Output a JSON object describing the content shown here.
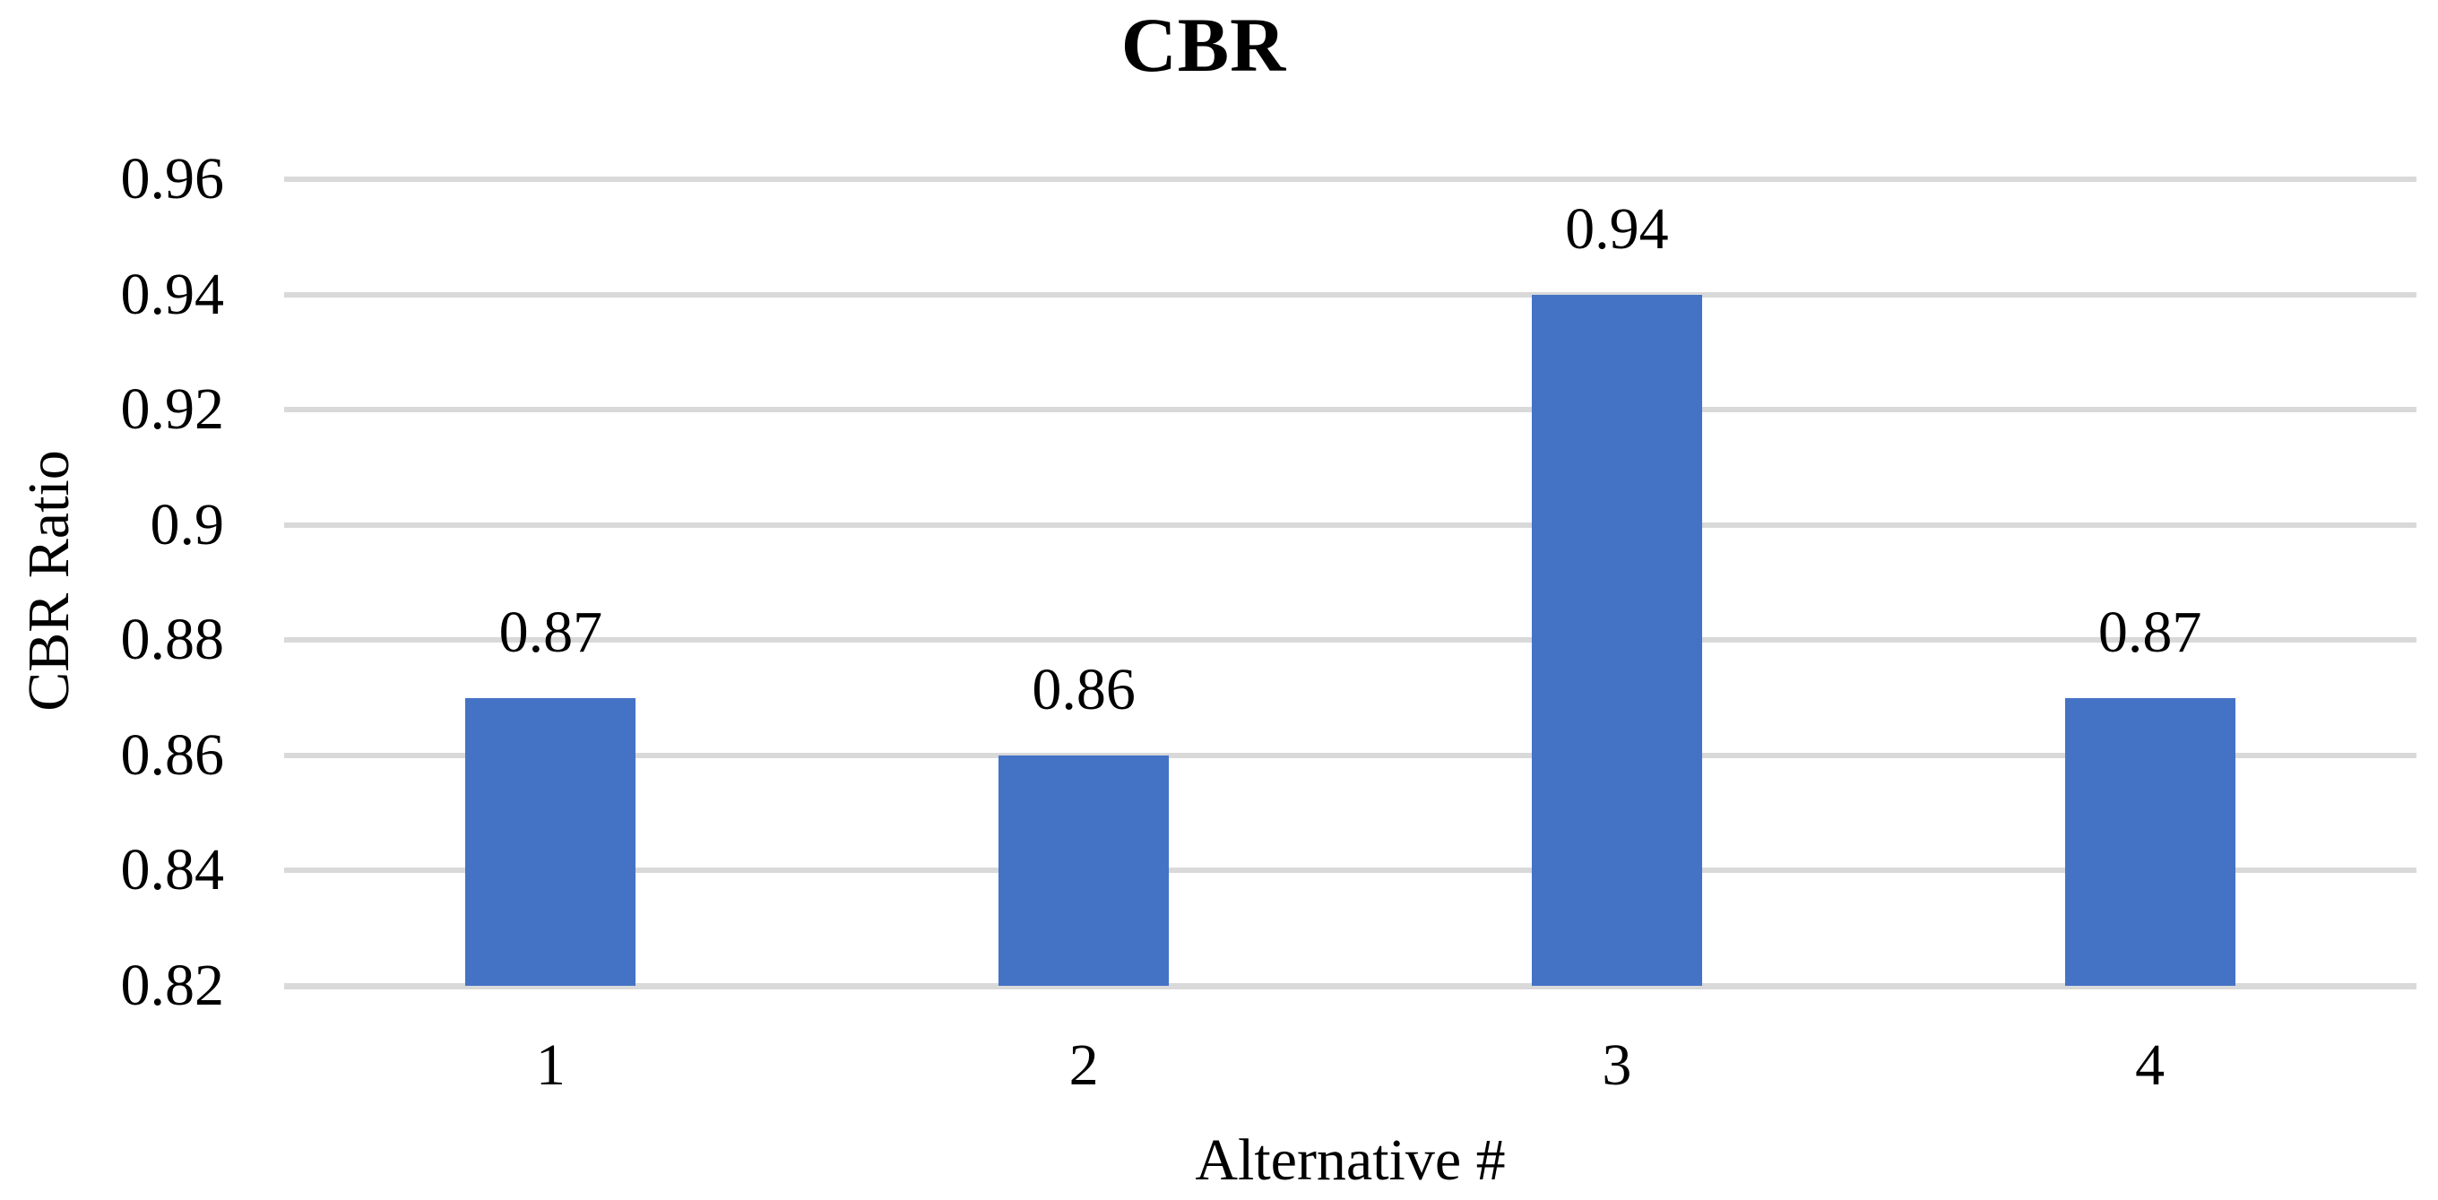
{
  "chart_data": {
    "type": "bar",
    "title": "CBR",
    "xlabel": "Alternative #",
    "ylabel": "CBR Ratio",
    "categories": [
      "1",
      "2",
      "3",
      "4"
    ],
    "series": [
      {
        "name": "CBR",
        "values": [
          0.87,
          0.86,
          0.94,
          0.87
        ],
        "data_labels": [
          "0.87",
          "0.86",
          "0.94",
          "0.87"
        ]
      }
    ],
    "ylim": [
      0.82,
      0.96
    ],
    "y_tick_labels": [
      "0.96",
      "0.94",
      "0.92",
      "0.9",
      "0.88",
      "0.86",
      "0.84",
      "0.82"
    ],
    "y_tick_values": [
      0.96,
      0.94,
      0.92,
      0.9,
      0.88,
      0.86,
      0.84,
      0.82
    ],
    "grid": "horizontal",
    "legend_position": "none",
    "colors": {
      "bar_fill": "#4472C4",
      "gridline": "#D9D9D9",
      "axis_line": "#D9D9D9",
      "text": "#000000",
      "background": "#FFFFFF"
    }
  }
}
